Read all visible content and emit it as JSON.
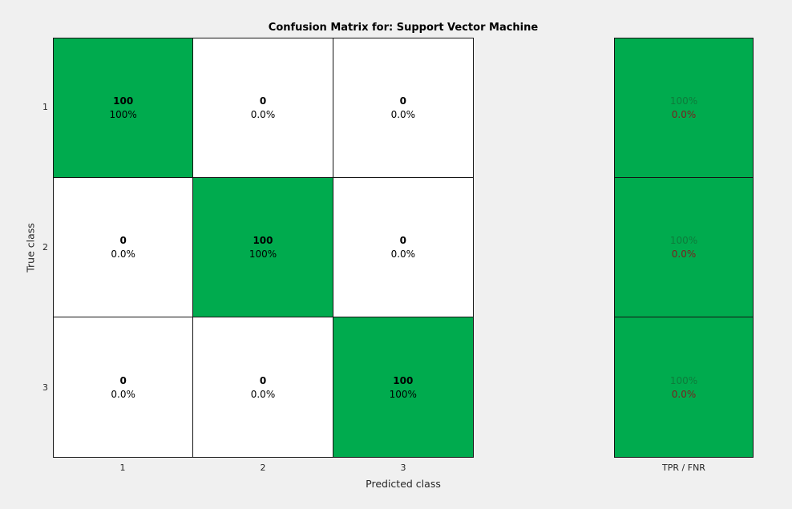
{
  "title": "Confusion Matrix for: Support Vector Machine",
  "axes": {
    "x_label": "Predicted class",
    "y_label": "True class",
    "x_ticks": [
      "1",
      "2",
      "3"
    ],
    "y_ticks": [
      "1",
      "2",
      "3"
    ],
    "summary_tick": "TPR / FNR"
  },
  "colors": {
    "figure_background": "#F0F0F0",
    "diagonal_cell": "#00AB4E",
    "off_diagonal_cell": "#FFFFFF",
    "grid_line": "#141414",
    "cell_text": "#000000",
    "axis_text": "#262626",
    "tpr_text": "#0D7C3B",
    "fnr_text": "#7C1E1E"
  },
  "chart_data": {
    "type": "heatmap",
    "title": "Confusion Matrix for: Support Vector Machine",
    "xlabel": "Predicted class",
    "ylabel": "True class",
    "x_categories": [
      "1",
      "2",
      "3"
    ],
    "y_categories": [
      "1",
      "2",
      "3"
    ],
    "matrix_counts": [
      [
        100,
        0,
        0
      ],
      [
        0,
        100,
        0
      ],
      [
        0,
        0,
        100
      ]
    ],
    "matrix_percents": [
      [
        "100%",
        "0.0%",
        "0.0%"
      ],
      [
        "0.0%",
        "100%",
        "0.0%"
      ],
      [
        "0.0%",
        "0.0%",
        "100%"
      ]
    ],
    "row_summary": {
      "label": "TPR / FNR",
      "tpr": [
        "100%",
        "100%",
        "100%"
      ],
      "fnr": [
        "0.0%",
        "0.0%",
        "0.0%"
      ]
    },
    "legend_position": "none",
    "grid": "on"
  }
}
